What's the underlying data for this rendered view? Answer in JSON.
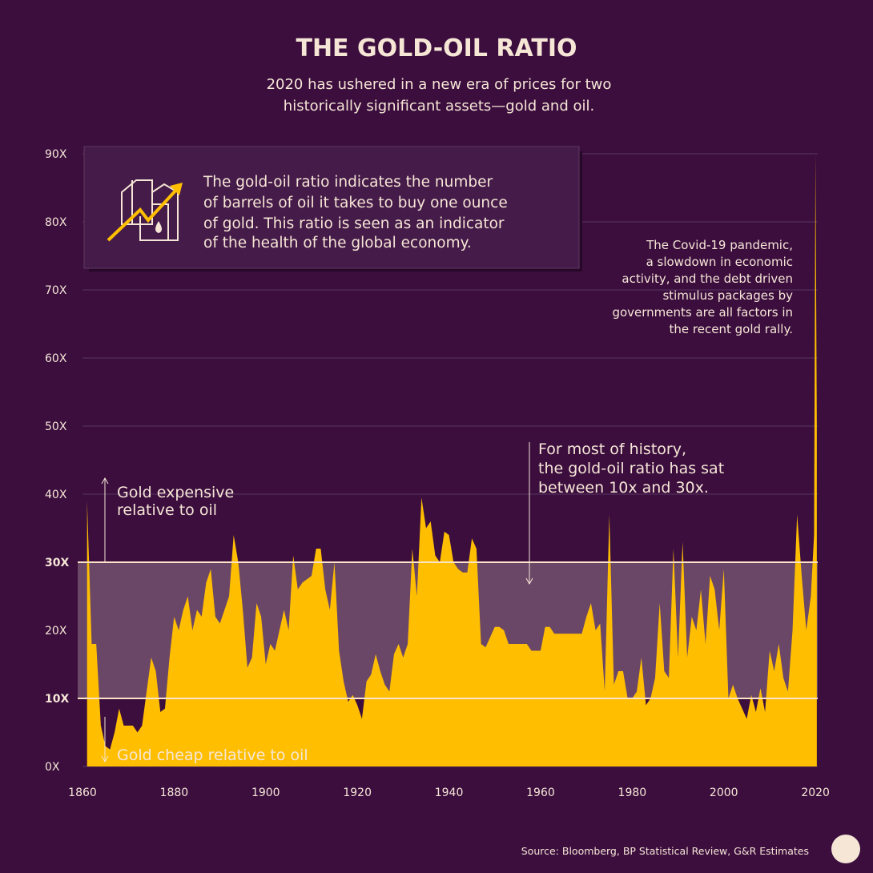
{
  "chart_data": {
    "type": "area",
    "title": "THE GOLD-OIL RATIO",
    "subtitle": [
      "2020 has ushered in a new era of prices for two",
      "historically significant assets—gold and oil."
    ],
    "info_text": [
      "The gold-oil ratio indicates the number",
      "of barrels of oil it takes to buy one ounce",
      "of gold. This ratio is seen as an indicator",
      "of the health of the global economy."
    ],
    "covid_note": [
      "The Covid-19 pandemic,",
      "a slowdown in economic",
      "activity, and the debt driven",
      "stimulus packages by",
      "governments are all factors in",
      "the recent gold rally."
    ],
    "history_note": [
      "For most of history,",
      "the gold-oil ratio has sat",
      "between 10x and 30x."
    ],
    "expensive_note": [
      "Gold expensive",
      "relative to oil"
    ],
    "cheap_note": "Gold cheap relative to oil",
    "source": "Source: Bloomberg, BP Statistical Review, G&R Estimates",
    "color": "#ffbf00",
    "highlight_range": [
      10,
      30
    ],
    "x": [
      1861,
      1862,
      1863,
      1864,
      1865,
      1866,
      1867,
      1868,
      1869,
      1870,
      1871,
      1872,
      1873,
      1874,
      1875,
      1876,
      1877,
      1878,
      1879,
      1880,
      1881,
      1882,
      1883,
      1884,
      1885,
      1886,
      1887,
      1888,
      1889,
      1890,
      1891,
      1892,
      1893,
      1894,
      1895,
      1896,
      1897,
      1898,
      1899,
      1900,
      1901,
      1902,
      1903,
      1904,
      1905,
      1906,
      1907,
      1908,
      1909,
      1910,
      1911,
      1912,
      1913,
      1914,
      1915,
      1916,
      1917,
      1918,
      1919,
      1920,
      1921,
      1922,
      1923,
      1924,
      1925,
      1926,
      1927,
      1928,
      1929,
      1930,
      1931,
      1932,
      1933,
      1934,
      1935,
      1936,
      1937,
      1938,
      1939,
      1940,
      1941,
      1942,
      1943,
      1944,
      1945,
      1946,
      1947,
      1948,
      1950,
      1951,
      1952,
      1953,
      1955,
      1957,
      1958,
      1960,
      1961,
      1962,
      1963,
      1965,
      1967,
      1969,
      1970,
      1971,
      1972,
      1973,
      1974,
      1975,
      1976,
      1977,
      1978,
      1979,
      1980,
      1981,
      1982,
      1983,
      1984,
      1985,
      1986,
      1987,
      1988,
      1989,
      1990,
      1991,
      1992,
      1993,
      1994,
      1995,
      1996,
      1997,
      1998,
      1999,
      2000,
      2001,
      2002,
      2003,
      2004,
      2005,
      2006,
      2007,
      2008,
      2009,
      2010,
      2011,
      2012,
      2013,
      2014,
      2015,
      2016,
      2017,
      2018,
      2019,
      2019.7,
      2020,
      2020.3
    ],
    "values": [
      39,
      18,
      18,
      6,
      3,
      2.5,
      5,
      8.5,
      6,
      6,
      6,
      5,
      6,
      11,
      16,
      14,
      8,
      8.5,
      16,
      22,
      20,
      23,
      25,
      20,
      23,
      22,
      27,
      29,
      22,
      21,
      23,
      25,
      34,
      30,
      23,
      14.5,
      16,
      24,
      22,
      15,
      18,
      17,
      20,
      23,
      20,
      31,
      26,
      27,
      27.5,
      28,
      32,
      32,
      26,
      23,
      30,
      17,
      12.5,
      9.5,
      10.5,
      9,
      7,
      12.5,
      13.5,
      16.5,
      14,
      12,
      11,
      16.5,
      18,
      16,
      18,
      32,
      25,
      39.5,
      35,
      36,
      31,
      30,
      34.5,
      34,
      30,
      29,
      28.5,
      28.5,
      33.5,
      32,
      18,
      17.5,
      20.5,
      20.5,
      20,
      18,
      18,
      18,
      17,
      17,
      20.5,
      20.5,
      19.5,
      19.5,
      19.5,
      19.5,
      22,
      24,
      20,
      21,
      11,
      37,
      12,
      14,
      14,
      10,
      10,
      11,
      16,
      9,
      10,
      13,
      24,
      14,
      13,
      32,
      16,
      33,
      16,
      22,
      20,
      26,
      18,
      28,
      26,
      20,
      29,
      10,
      12,
      10,
      8.5,
      7,
      10.5,
      8,
      11.5,
      8,
      17,
      14,
      18,
      13,
      11,
      20,
      37,
      28,
      20,
      25,
      34,
      90,
      50
    ],
    "xlim": [
      1860,
      2020.5
    ],
    "ylim": [
      0,
      90
    ],
    "xticks": [
      1860,
      1880,
      1900,
      1920,
      1940,
      1960,
      1980,
      2000,
      2020
    ],
    "yticks": [
      {
        "value": 0,
        "label": "0X"
      },
      {
        "value": 10,
        "label": "10X"
      },
      {
        "value": 20,
        "label": "20X"
      },
      {
        "value": 30,
        "label": "30X"
      },
      {
        "value": 40,
        "label": "40X"
      },
      {
        "value": 50,
        "label": "50X"
      },
      {
        "value": 60,
        "label": "60X"
      },
      {
        "value": 70,
        "label": "70X"
      },
      {
        "value": 80,
        "label": "80X"
      },
      {
        "value": 90,
        "label": "90X"
      }
    ],
    "grid": true
  }
}
